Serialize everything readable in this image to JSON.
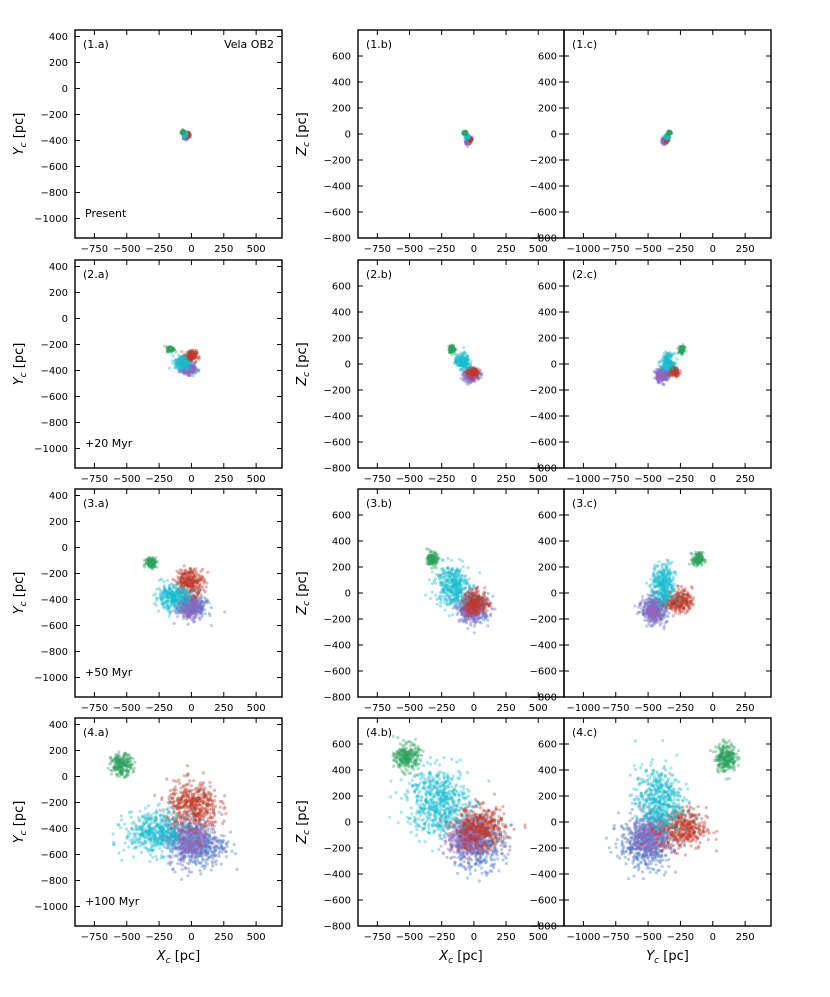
{
  "figure": {
    "title": "",
    "group_colors": {
      "green": "#2ca25f",
      "cyan": "#17becf",
      "red": "#c0392b",
      "purple": "#9467bd",
      "blue": "#4a76c6"
    }
  },
  "chart_data": [
    {
      "id": "1.a",
      "type": "scatter",
      "row": 0,
      "col": 0,
      "label": "(1.a)",
      "annotation": "Vela OB2",
      "note": "Present",
      "xlabel": "",
      "ylabel": "Y_c [pc]",
      "xlim": [
        -900,
        700
      ],
      "ylim": [
        -1150,
        450
      ],
      "xticks": [
        -750,
        -500,
        -250,
        0,
        250,
        500
      ],
      "yticks": [
        400,
        200,
        0,
        -200,
        -400,
        -600,
        -800,
        -1000
      ],
      "series": [
        {
          "group": "blue",
          "cx": -40,
          "cy": -370,
          "sx": 10,
          "sy": 10
        },
        {
          "group": "purple",
          "cx": -45,
          "cy": -375,
          "sx": 9,
          "sy": 9
        },
        {
          "group": "red",
          "cx": -30,
          "cy": -355,
          "sx": 8,
          "sy": 9
        },
        {
          "group": "cyan",
          "cx": -50,
          "cy": -350,
          "sx": 8,
          "sy": 8
        },
        {
          "group": "green",
          "cx": -65,
          "cy": -335,
          "sx": 7,
          "sy": 6
        }
      ]
    },
    {
      "id": "1.b",
      "type": "scatter",
      "row": 0,
      "col": 1,
      "label": "(1.b)",
      "annotation": "",
      "note": "",
      "xlabel": "",
      "ylabel": "Z_c [pc]",
      "xlim": [
        -900,
        700
      ],
      "ylim": [
        -800,
        800
      ],
      "xticks": [
        -750,
        -500,
        -250,
        0,
        250,
        500
      ],
      "yticks": [
        600,
        400,
        200,
        0,
        -200,
        -400,
        -600,
        -800
      ],
      "series": [
        {
          "group": "blue",
          "cx": -40,
          "cy": -50,
          "sx": 10,
          "sy": 10
        },
        {
          "group": "purple",
          "cx": -45,
          "cy": -60,
          "sx": 9,
          "sy": 9
        },
        {
          "group": "red",
          "cx": -30,
          "cy": -40,
          "sx": 8,
          "sy": 9
        },
        {
          "group": "cyan",
          "cx": -50,
          "cy": -20,
          "sx": 8,
          "sy": 8
        },
        {
          "group": "green",
          "cx": -70,
          "cy": 10,
          "sx": 7,
          "sy": 6
        }
      ]
    },
    {
      "id": "1.c",
      "type": "scatter",
      "row": 0,
      "col": 2,
      "label": "(1.c)",
      "annotation": "",
      "note": "",
      "xlabel": "",
      "ylabel": "",
      "xlim": [
        -1150,
        450
      ],
      "ylim": [
        -800,
        800
      ],
      "xticks": [
        -1000,
        -750,
        -500,
        -250,
        0,
        250
      ],
      "yticks": [
        600,
        400,
        200,
        0,
        -200,
        -400,
        -600,
        -800
      ],
      "series": [
        {
          "group": "blue",
          "cx": -370,
          "cy": -50,
          "sx": 10,
          "sy": 10
        },
        {
          "group": "purple",
          "cx": -375,
          "cy": -60,
          "sx": 9,
          "sy": 9
        },
        {
          "group": "red",
          "cx": -355,
          "cy": -40,
          "sx": 8,
          "sy": 9
        },
        {
          "group": "cyan",
          "cx": -350,
          "cy": -20,
          "sx": 8,
          "sy": 8
        },
        {
          "group": "green",
          "cx": -335,
          "cy": 10,
          "sx": 7,
          "sy": 6
        }
      ]
    },
    {
      "id": "2.a",
      "type": "scatter",
      "row": 1,
      "col": 0,
      "label": "(2.a)",
      "annotation": "",
      "note": "+20 Myr",
      "xlabel": "",
      "ylabel": "Y_c [pc]",
      "xlim": [
        -900,
        700
      ],
      "ylim": [
        -1150,
        450
      ],
      "xticks": [
        -750,
        -500,
        -250,
        0,
        250,
        500
      ],
      "yticks": [
        400,
        200,
        0,
        -200,
        -400,
        -600,
        -800,
        -1000
      ],
      "series": [
        {
          "group": "blue",
          "cx": -20,
          "cy": -390,
          "sx": 28,
          "sy": 20
        },
        {
          "group": "purple",
          "cx": -30,
          "cy": -390,
          "sx": 25,
          "sy": 18
        },
        {
          "group": "red",
          "cx": -10,
          "cy": -290,
          "sx": 25,
          "sy": 22
        },
        {
          "group": "cyan",
          "cx": -70,
          "cy": -340,
          "sx": 30,
          "sy": 28
        },
        {
          "group": "green",
          "cx": -160,
          "cy": -235,
          "sx": 14,
          "sy": 10
        }
      ]
    },
    {
      "id": "2.b",
      "type": "scatter",
      "row": 1,
      "col": 1,
      "label": "(2.b)",
      "annotation": "",
      "note": "",
      "xlabel": "",
      "ylabel": "Z_c [pc]",
      "xlim": [
        -900,
        700
      ],
      "ylim": [
        -800,
        800
      ],
      "xticks": [
        -750,
        -500,
        -250,
        0,
        250,
        500
      ],
      "yticks": [
        600,
        400,
        200,
        0,
        -200,
        -400,
        -600,
        -800
      ],
      "series": [
        {
          "group": "blue",
          "cx": -20,
          "cy": -80,
          "sx": 28,
          "sy": 25
        },
        {
          "group": "purple",
          "cx": -30,
          "cy": -90,
          "sx": 25,
          "sy": 22
        },
        {
          "group": "red",
          "cx": -10,
          "cy": -60,
          "sx": 22,
          "sy": 20
        },
        {
          "group": "cyan",
          "cx": -90,
          "cy": 20,
          "sx": 28,
          "sy": 30
        },
        {
          "group": "green",
          "cx": -170,
          "cy": 115,
          "sx": 12,
          "sy": 14
        }
      ]
    },
    {
      "id": "2.c",
      "type": "scatter",
      "row": 1,
      "col": 2,
      "label": "(2.c)",
      "annotation": "",
      "note": "",
      "xlabel": "",
      "ylabel": "",
      "xlim": [
        -1150,
        450
      ],
      "ylim": [
        -800,
        800
      ],
      "xticks": [
        -1000,
        -750,
        -500,
        -250,
        0,
        250
      ],
      "yticks": [
        600,
        400,
        200,
        0,
        -200,
        -400,
        -600,
        -800
      ],
      "series": [
        {
          "group": "blue",
          "cx": -390,
          "cy": -80,
          "sx": 22,
          "sy": 25
        },
        {
          "group": "purple",
          "cx": -395,
          "cy": -90,
          "sx": 20,
          "sy": 22
        },
        {
          "group": "red",
          "cx": -300,
          "cy": -60,
          "sx": 22,
          "sy": 20
        },
        {
          "group": "cyan",
          "cx": -350,
          "cy": 20,
          "sx": 24,
          "sy": 30
        },
        {
          "group": "green",
          "cx": -240,
          "cy": 110,
          "sx": 12,
          "sy": 14
        }
      ]
    },
    {
      "id": "3.a",
      "type": "scatter",
      "row": 2,
      "col": 0,
      "label": "(3.a)",
      "annotation": "",
      "note": "+50 Myr",
      "xlabel": "",
      "ylabel": "Y_c [pc]",
      "xlim": [
        -900,
        700
      ],
      "ylim": [
        -1150,
        450
      ],
      "xticks": [
        -750,
        -500,
        -250,
        0,
        250,
        500
      ],
      "yticks": [
        400,
        200,
        0,
        -200,
        -400,
        -600,
        -800,
        -1000
      ],
      "series": [
        {
          "group": "blue",
          "cx": 0,
          "cy": -450,
          "sx": 60,
          "sy": 50
        },
        {
          "group": "purple",
          "cx": -20,
          "cy": -460,
          "sx": 45,
          "sy": 40
        },
        {
          "group": "red",
          "cx": -10,
          "cy": -260,
          "sx": 55,
          "sy": 50
        },
        {
          "group": "cyan",
          "cx": -150,
          "cy": -380,
          "sx": 65,
          "sy": 45
        },
        {
          "group": "green",
          "cx": -310,
          "cy": -115,
          "sx": 22,
          "sy": 20
        }
      ]
    },
    {
      "id": "3.b",
      "type": "scatter",
      "row": 2,
      "col": 1,
      "label": "(3.b)",
      "annotation": "",
      "note": "",
      "xlabel": "",
      "ylabel": "Z_c [pc]",
      "xlim": [
        -900,
        700
      ],
      "ylim": [
        -800,
        800
      ],
      "xticks": [
        -750,
        -500,
        -250,
        0,
        250,
        500
      ],
      "yticks": [
        600,
        400,
        200,
        0,
        -200,
        -400,
        -600,
        -800
      ],
      "series": [
        {
          "group": "blue",
          "cx": 0,
          "cy": -120,
          "sx": 60,
          "sy": 55
        },
        {
          "group": "purple",
          "cx": -20,
          "cy": -130,
          "sx": 45,
          "sy": 45
        },
        {
          "group": "red",
          "cx": 10,
          "cy": -70,
          "sx": 50,
          "sy": 45
        },
        {
          "group": "cyan",
          "cx": -170,
          "cy": 60,
          "sx": 65,
          "sy": 80
        },
        {
          "group": "green",
          "cx": -320,
          "cy": 260,
          "sx": 20,
          "sy": 25
        }
      ]
    },
    {
      "id": "3.c",
      "type": "scatter",
      "row": 2,
      "col": 2,
      "label": "(3.c)",
      "annotation": "",
      "note": "",
      "xlabel": "",
      "ylabel": "",
      "xlim": [
        -1150,
        450
      ],
      "ylim": [
        -800,
        800
      ],
      "xticks": [
        -1000,
        -750,
        -500,
        -250,
        0,
        250
      ],
      "yticks": [
        600,
        400,
        200,
        0,
        -200,
        -400,
        -600,
        -800
      ],
      "series": [
        {
          "group": "blue",
          "cx": -450,
          "cy": -120,
          "sx": 50,
          "sy": 55
        },
        {
          "group": "purple",
          "cx": -460,
          "cy": -130,
          "sx": 40,
          "sy": 45
        },
        {
          "group": "red",
          "cx": -260,
          "cy": -60,
          "sx": 50,
          "sy": 45
        },
        {
          "group": "cyan",
          "cx": -380,
          "cy": 60,
          "sx": 45,
          "sy": 80
        },
        {
          "group": "green",
          "cx": -115,
          "cy": 260,
          "sx": 20,
          "sy": 25
        }
      ]
    },
    {
      "id": "4.a",
      "type": "scatter",
      "row": 3,
      "col": 0,
      "label": "(4.a)",
      "annotation": "",
      "note": "+100 Myr",
      "xlabel": "X_c [pc]",
      "ylabel": "Y_c [pc]",
      "xlim": [
        -900,
        700
      ],
      "ylim": [
        -1150,
        450
      ],
      "xticks": [
        -750,
        -500,
        -250,
        0,
        250,
        500
      ],
      "yticks": [
        400,
        200,
        0,
        -200,
        -400,
        -600,
        -800,
        -1000
      ],
      "series": [
        {
          "group": "blue",
          "cx": 40,
          "cy": -520,
          "sx": 110,
          "sy": 90
        },
        {
          "group": "purple",
          "cx": -30,
          "cy": -480,
          "sx": 85,
          "sy": 75
        },
        {
          "group": "red",
          "cx": 10,
          "cy": -230,
          "sx": 100,
          "sy": 95
        },
        {
          "group": "cyan",
          "cx": -270,
          "cy": -430,
          "sx": 120,
          "sy": 80
        },
        {
          "group": "green",
          "cx": -540,
          "cy": 90,
          "sx": 40,
          "sy": 40
        }
      ]
    },
    {
      "id": "4.b",
      "type": "scatter",
      "row": 3,
      "col": 1,
      "label": "(4.b)",
      "annotation": "",
      "note": "",
      "xlabel": "X_c [pc]",
      "ylabel": "Z_c [pc]",
      "xlim": [
        -900,
        700
      ],
      "ylim": [
        -800,
        800
      ],
      "xticks": [
        -750,
        -500,
        -250,
        0,
        250,
        500
      ],
      "yticks": [
        600,
        400,
        200,
        0,
        -200,
        -400,
        -600,
        -800
      ],
      "series": [
        {
          "group": "blue",
          "cx": 20,
          "cy": -160,
          "sx": 110,
          "sy": 100
        },
        {
          "group": "purple",
          "cx": -50,
          "cy": -110,
          "sx": 80,
          "sy": 70
        },
        {
          "group": "red",
          "cx": 40,
          "cy": -50,
          "sx": 100,
          "sy": 80
        },
        {
          "group": "cyan",
          "cx": -280,
          "cy": 160,
          "sx": 120,
          "sy": 130
        },
        {
          "group": "green",
          "cx": -520,
          "cy": 500,
          "sx": 45,
          "sy": 50
        }
      ]
    },
    {
      "id": "4.c",
      "type": "scatter",
      "row": 3,
      "col": 2,
      "label": "(4.c)",
      "annotation": "",
      "note": "",
      "xlabel": "Y_c [pc]",
      "ylabel": "",
      "xlim": [
        -1150,
        450
      ],
      "ylim": [
        -800,
        800
      ],
      "xticks": [
        -1000,
        -750,
        -500,
        -250,
        0,
        250
      ],
      "yticks": [
        600,
        400,
        200,
        0,
        -200,
        -400,
        -600,
        -800
      ],
      "series": [
        {
          "group": "blue",
          "cx": -520,
          "cy": -160,
          "sx": 100,
          "sy": 100
        },
        {
          "group": "purple",
          "cx": -480,
          "cy": -110,
          "sx": 70,
          "sy": 70
        },
        {
          "group": "red",
          "cx": -240,
          "cy": -50,
          "sx": 95,
          "sy": 80
        },
        {
          "group": "cyan",
          "cx": -420,
          "cy": 160,
          "sx": 90,
          "sy": 130
        },
        {
          "group": "green",
          "cx": 100,
          "cy": 500,
          "sx": 40,
          "sy": 55
        }
      ]
    }
  ]
}
